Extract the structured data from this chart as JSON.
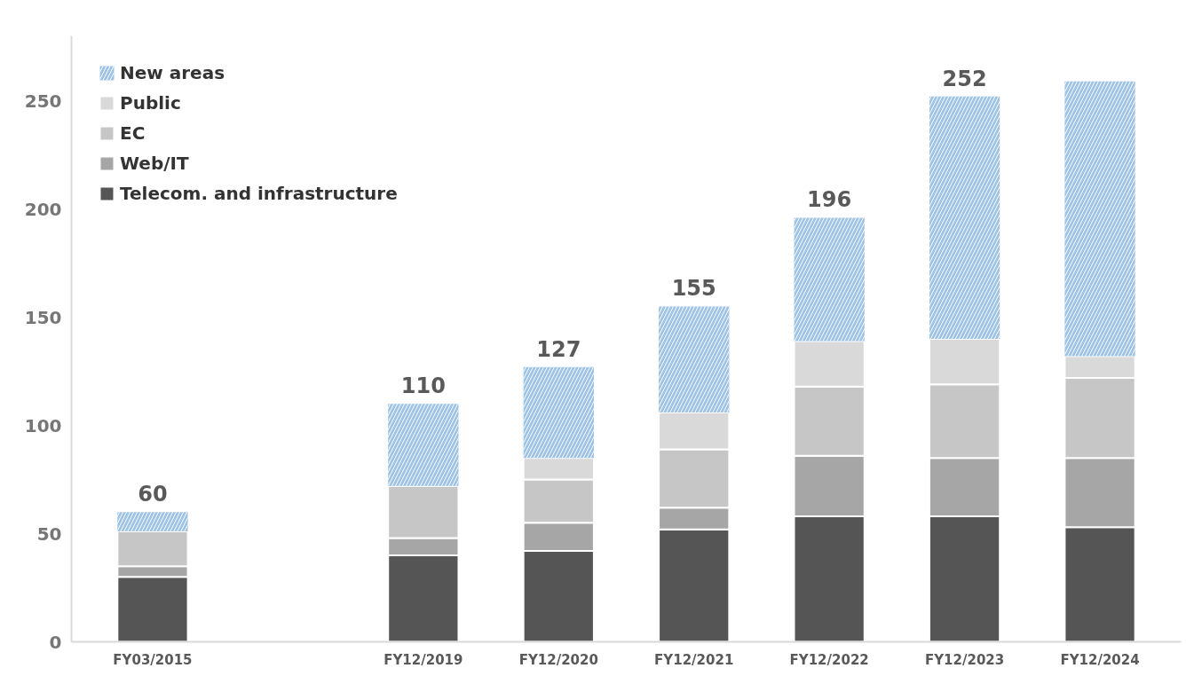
{
  "chart_data": {
    "type": "bar",
    "stacked": true,
    "categories": [
      "FY03/2015",
      null,
      "FY12/2019",
      "FY12/2020",
      "FY12/2021",
      "FY12/2022",
      "FY12/2023",
      "FY12/2024"
    ],
    "series": [
      {
        "name": "Telecom. and infrastructure",
        "color": "#555555",
        "values": [
          30,
          null,
          40,
          42,
          52,
          58,
          58,
          53
        ]
      },
      {
        "name": "Web/IT",
        "color": "#a6a6a6",
        "values": [
          5,
          null,
          8,
          13,
          10,
          28,
          27,
          32
        ]
      },
      {
        "name": "EC",
        "color": "#c6c6c6",
        "values": [
          16,
          null,
          24,
          20,
          27,
          32,
          34,
          37
        ]
      },
      {
        "name": "Public",
        "color": "#d9d9d9",
        "values": [
          0,
          null,
          0,
          10,
          17,
          21,
          21,
          10
        ]
      },
      {
        "name": "New areas",
        "color": "#9dc3e6",
        "values": [
          9,
          null,
          38,
          42,
          49,
          57,
          112,
          127
        ]
      }
    ],
    "totals": [
      "60",
      null,
      "110",
      "127",
      "155",
      "196",
      "252",
      null
    ],
    "ylim": [
      0,
      280
    ],
    "yticks": [
      0,
      50,
      100,
      150,
      200,
      250
    ],
    "grid": false,
    "legend": "top left"
  }
}
